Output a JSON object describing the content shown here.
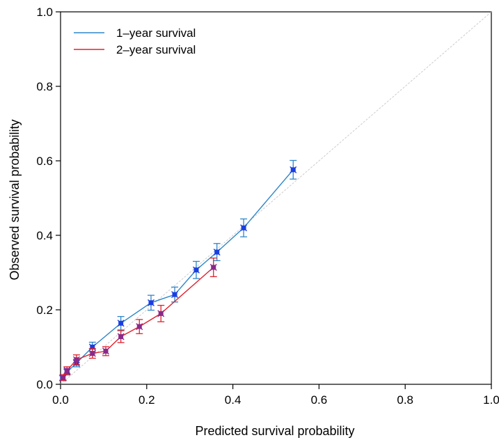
{
  "chart_data": {
    "type": "line",
    "xlabel": "Predicted survival probability",
    "ylabel": "Observed survival probability",
    "xlim": [
      0.0,
      1.0
    ],
    "ylim": [
      0.0,
      1.0
    ],
    "xticks": [
      "0.0",
      "0.2",
      "0.4",
      "0.6",
      "0.8",
      "1.0"
    ],
    "yticks": [
      "0.0",
      "0.2",
      "0.4",
      "0.6",
      "0.8",
      "1.0"
    ],
    "grid": false,
    "legend_position": "top-left",
    "reference_line": {
      "x": [
        0,
        1
      ],
      "y": [
        0,
        1
      ],
      "color": "#cccccc",
      "style": "dashed"
    },
    "series": [
      {
        "name": "1–year survival",
        "color": "#2e86c8",
        "marker_color": "#1a3fe0",
        "points": [
          {
            "x": 0.005,
            "y": 0.017,
            "lo": 0.011,
            "hi": 0.023
          },
          {
            "x": 0.015,
            "y": 0.033,
            "lo": 0.025,
            "hi": 0.041
          },
          {
            "x": 0.037,
            "y": 0.057,
            "lo": 0.047,
            "hi": 0.067
          },
          {
            "x": 0.074,
            "y": 0.1,
            "lo": 0.087,
            "hi": 0.113
          },
          {
            "x": 0.14,
            "y": 0.164,
            "lo": 0.146,
            "hi": 0.182
          },
          {
            "x": 0.21,
            "y": 0.219,
            "lo": 0.199,
            "hi": 0.239
          },
          {
            "x": 0.265,
            "y": 0.241,
            "lo": 0.221,
            "hi": 0.261
          },
          {
            "x": 0.315,
            "y": 0.307,
            "lo": 0.284,
            "hi": 0.33
          },
          {
            "x": 0.363,
            "y": 0.355,
            "lo": 0.332,
            "hi": 0.378
          },
          {
            "x": 0.425,
            "y": 0.42,
            "lo": 0.396,
            "hi": 0.444
          },
          {
            "x": 0.54,
            "y": 0.576,
            "lo": 0.551,
            "hi": 0.601
          }
        ]
      },
      {
        "name": "2–year survival",
        "color": "#e0202a",
        "marker_color": "#8a2a8a",
        "points": [
          {
            "x": 0.006,
            "y": 0.018,
            "lo": 0.01,
            "hi": 0.026
          },
          {
            "x": 0.015,
            "y": 0.037,
            "lo": 0.027,
            "hi": 0.047
          },
          {
            "x": 0.037,
            "y": 0.066,
            "lo": 0.053,
            "hi": 0.079
          },
          {
            "x": 0.074,
            "y": 0.083,
            "lo": 0.07,
            "hi": 0.096
          },
          {
            "x": 0.105,
            "y": 0.089,
            "lo": 0.077,
            "hi": 0.101
          },
          {
            "x": 0.14,
            "y": 0.128,
            "lo": 0.112,
            "hi": 0.144
          },
          {
            "x": 0.183,
            "y": 0.155,
            "lo": 0.136,
            "hi": 0.174
          },
          {
            "x": 0.233,
            "y": 0.19,
            "lo": 0.168,
            "hi": 0.212
          },
          {
            "x": 0.355,
            "y": 0.314,
            "lo": 0.289,
            "hi": 0.339
          }
        ]
      }
    ]
  }
}
